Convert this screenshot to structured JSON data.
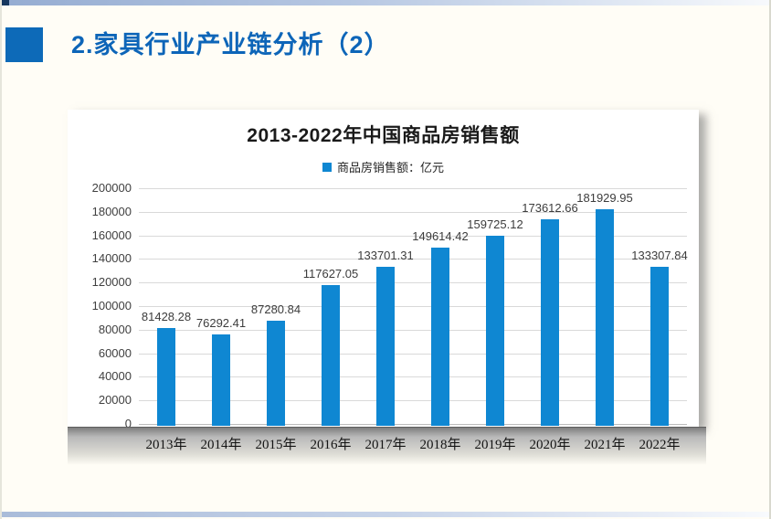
{
  "slide": {
    "title": "2.家具行业产业链分析（2）",
    "colors": {
      "title_blue": "#0d65b8",
      "title_square_blue": "#0d6ab8",
      "bar_blue": "#0f87d2",
      "slide_background": "#fffdf6"
    }
  },
  "chart_data": {
    "type": "bar",
    "title": "2013-2022年中国商品房销售额",
    "legend": "商品房销售额：亿元",
    "legend_position": "top",
    "categories": [
      "2013年",
      "2014年",
      "2015年",
      "2016年",
      "2017年",
      "2018年",
      "2019年",
      "2020年",
      "2021年",
      "2022年"
    ],
    "values": [
      81428.28,
      76292.41,
      87280.84,
      117627.05,
      133701.31,
      149614.42,
      159725.12,
      173612.66,
      181929.95,
      133307.84
    ],
    "value_labels": [
      "81428.28",
      "76292.41",
      "87280.84",
      "117627.05",
      "133701.31",
      "149614.42",
      "159725.12",
      "173612.66",
      "181929.95",
      "133307.84"
    ],
    "xlabel": "",
    "ylabel": "",
    "ylim": [
      0,
      200000
    ],
    "ytick_step": 20000,
    "yticks": [
      0,
      20000,
      40000,
      60000,
      80000,
      100000,
      120000,
      140000,
      160000,
      180000,
      200000
    ],
    "grid": true,
    "bar_color": "#0f87d2"
  }
}
